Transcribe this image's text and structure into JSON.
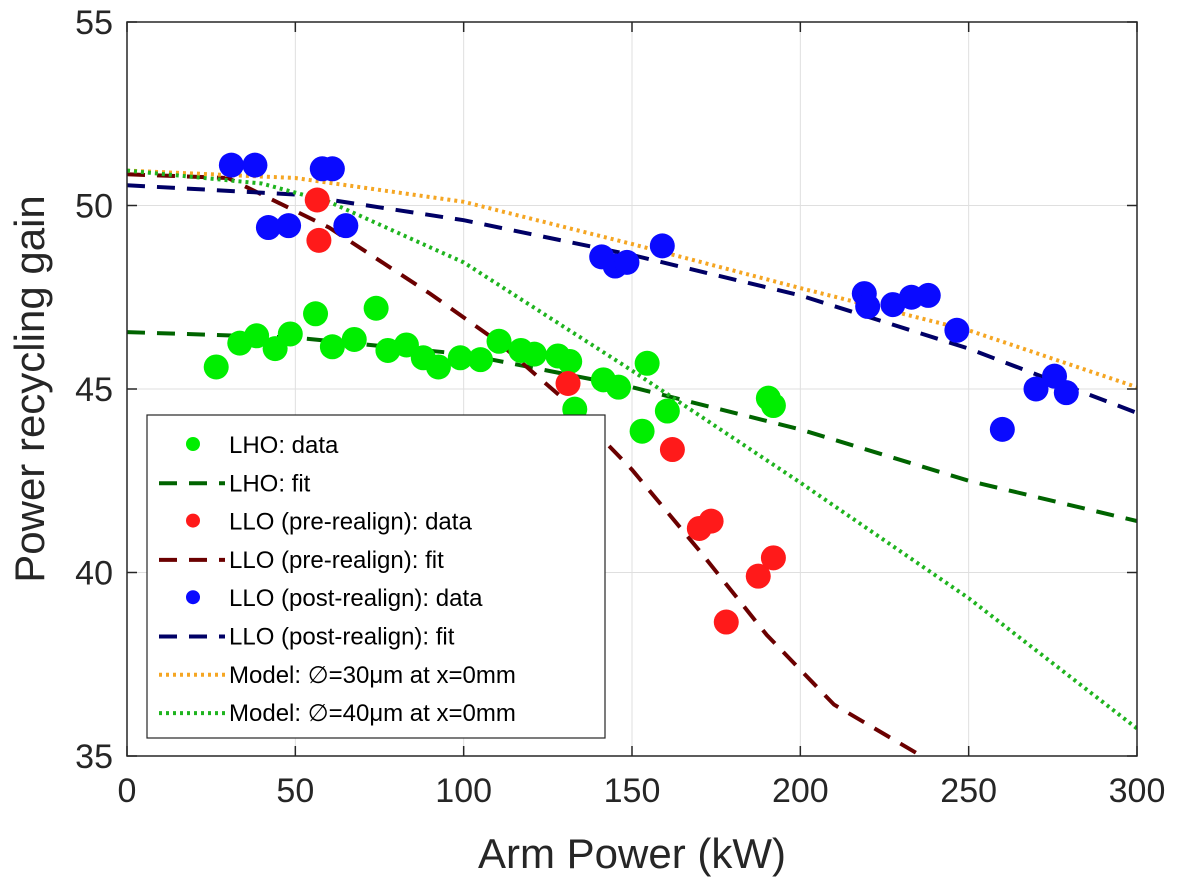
{
  "chart_data": {
    "type": "scatter",
    "xlabel": "Arm Power (kW)",
    "ylabel": "Power recycling gain",
    "xlim": [
      0,
      300
    ],
    "ylim": [
      35,
      55
    ],
    "xticks": [
      0,
      50,
      100,
      150,
      200,
      250,
      300
    ],
    "yticks": [
      35,
      40,
      45,
      50,
      55
    ],
    "grid": true,
    "legend_position": "bottom-left",
    "series": [
      {
        "name": "LHO: data",
        "kind": "points",
        "color": "#00ee00",
        "points": [
          [
            26.5,
            45.6
          ],
          [
            33.5,
            46.25
          ],
          [
            38.5,
            46.45
          ],
          [
            44,
            46.1
          ],
          [
            48.5,
            46.5
          ],
          [
            56,
            47.05
          ],
          [
            61,
            46.15
          ],
          [
            67.5,
            46.35
          ],
          [
            74,
            47.2
          ],
          [
            77.5,
            46.05
          ],
          [
            83,
            46.2
          ],
          [
            88,
            45.85
          ],
          [
            92.5,
            45.6
          ],
          [
            99,
            45.85
          ],
          [
            105,
            45.8
          ],
          [
            110.5,
            46.3
          ],
          [
            117,
            46.05
          ],
          [
            121,
            45.95
          ],
          [
            128,
            45.9
          ],
          [
            131.5,
            45.75
          ],
          [
            133,
            44.45
          ],
          [
            141.5,
            45.25
          ],
          [
            146,
            45.05
          ],
          [
            153,
            43.85
          ],
          [
            154.5,
            45.7
          ],
          [
            160.5,
            44.4
          ],
          [
            190.5,
            44.75
          ],
          [
            192,
            44.55
          ]
        ]
      },
      {
        "name": "LHO: fit",
        "kind": "line",
        "style": "dashed",
        "color": "#006400",
        "points": [
          [
            0,
            46.55
          ],
          [
            50,
            46.4
          ],
          [
            100,
            45.95
          ],
          [
            150,
            45.05
          ],
          [
            200,
            43.9
          ],
          [
            250,
            42.5
          ],
          [
            300,
            41.4
          ]
        ]
      },
      {
        "name": "LLO (pre-realign): data",
        "kind": "points",
        "color": "#ff1a1a",
        "points": [
          [
            56.5,
            50.15
          ],
          [
            57,
            49.05
          ],
          [
            131,
            45.15
          ],
          [
            162,
            43.35
          ],
          [
            170,
            41.2
          ],
          [
            173.5,
            41.4
          ],
          [
            178,
            38.65
          ],
          [
            187.5,
            39.9
          ],
          [
            192,
            40.4
          ]
        ]
      },
      {
        "name": "LLO (pre-realign): fit",
        "kind": "line",
        "style": "dashed",
        "color": "#6b0000",
        "points": [
          [
            0,
            50.85
          ],
          [
            30,
            50.75
          ],
          [
            60,
            49.4
          ],
          [
            90,
            47.6
          ],
          [
            110,
            46.3
          ],
          [
            130,
            44.7
          ],
          [
            150,
            42.8
          ],
          [
            170,
            40.6
          ],
          [
            190,
            38.3
          ],
          [
            210,
            36.4
          ],
          [
            236,
            35.0
          ]
        ]
      },
      {
        "name": "LLO (post-realign): data",
        "kind": "points",
        "color": "#0a0aff",
        "points": [
          [
            31,
            51.1
          ],
          [
            38,
            51.1
          ],
          [
            58,
            51.0
          ],
          [
            61,
            51.0
          ],
          [
            42,
            49.4
          ],
          [
            48,
            49.45
          ],
          [
            65,
            49.45
          ],
          [
            141,
            48.6
          ],
          [
            145,
            48.35
          ],
          [
            148.5,
            48.45
          ],
          [
            159,
            48.9
          ],
          [
            219,
            47.6
          ],
          [
            220,
            47.25
          ],
          [
            227.5,
            47.3
          ],
          [
            233,
            47.5
          ],
          [
            238,
            47.55
          ],
          [
            246.5,
            46.6
          ],
          [
            260,
            43.9
          ],
          [
            270,
            45.0
          ],
          [
            275.5,
            45.35
          ],
          [
            279,
            44.9
          ]
        ]
      },
      {
        "name": "LLO (post-realign): fit",
        "kind": "line",
        "style": "dashed",
        "color": "#000066",
        "points": [
          [
            0,
            50.55
          ],
          [
            50,
            50.3
          ],
          [
            100,
            49.6
          ],
          [
            150,
            48.65
          ],
          [
            200,
            47.55
          ],
          [
            250,
            46.1
          ],
          [
            300,
            44.35
          ]
        ]
      },
      {
        "name": "Model: ∅=30μm at x=0mm",
        "kind": "line",
        "style": "dotted",
        "color": "#f5a623",
        "points": [
          [
            0,
            50.95
          ],
          [
            50,
            50.75
          ],
          [
            100,
            50.1
          ],
          [
            150,
            48.95
          ],
          [
            200,
            47.75
          ],
          [
            250,
            46.6
          ],
          [
            300,
            45.05
          ]
        ]
      },
      {
        "name": "Model: ∅=40μm at x=0mm",
        "kind": "line",
        "style": "dotted",
        "color": "#1fb41f",
        "points": [
          [
            0,
            50.95
          ],
          [
            40,
            50.6
          ],
          [
            60,
            50.1
          ],
          [
            100,
            48.45
          ],
          [
            150,
            45.5
          ],
          [
            200,
            42.45
          ],
          [
            250,
            39.3
          ],
          [
            300,
            35.75
          ]
        ]
      }
    ]
  }
}
